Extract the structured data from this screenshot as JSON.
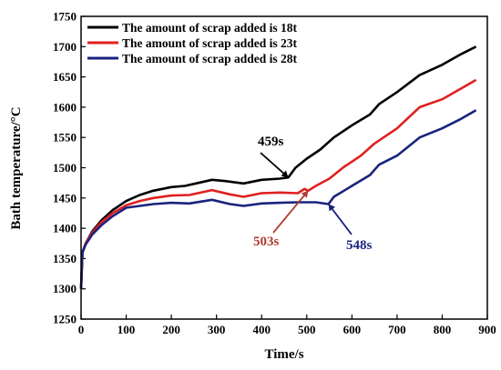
{
  "chart_data": {
    "type": "line",
    "title": "",
    "xlabel": "Time/s",
    "ylabel": "Bath temperature/°C",
    "xlim": [
      0,
      900
    ],
    "ylim": [
      1250,
      1750
    ],
    "xticks": [
      0,
      100,
      200,
      300,
      400,
      500,
      600,
      700,
      800,
      900
    ],
    "yticks": [
      1250,
      1300,
      1350,
      1400,
      1450,
      1500,
      1550,
      1600,
      1650,
      1700,
      1750
    ],
    "grid": false,
    "legend_position": "top-left",
    "series": [
      {
        "name": "The amount of scrap added is 18t",
        "color": "#000000",
        "points": [
          [
            0,
            1300
          ],
          [
            3,
            1360
          ],
          [
            10,
            1375
          ],
          [
            25,
            1395
          ],
          [
            45,
            1413
          ],
          [
            70,
            1430
          ],
          [
            100,
            1445
          ],
          [
            130,
            1455
          ],
          [
            160,
            1462
          ],
          [
            200,
            1468
          ],
          [
            230,
            1470
          ],
          [
            260,
            1475
          ],
          [
            290,
            1480
          ],
          [
            320,
            1478
          ],
          [
            360,
            1474
          ],
          [
            400,
            1480
          ],
          [
            440,
            1482
          ],
          [
            459,
            1484
          ],
          [
            475,
            1500
          ],
          [
            500,
            1515
          ],
          [
            530,
            1530
          ],
          [
            560,
            1550
          ],
          [
            600,
            1570
          ],
          [
            640,
            1588
          ],
          [
            660,
            1605
          ],
          [
            700,
            1625
          ],
          [
            750,
            1653
          ],
          [
            800,
            1670
          ],
          [
            840,
            1687
          ],
          [
            875,
            1700
          ]
        ]
      },
      {
        "name": "The amount of scrap added is 23t",
        "color": "#e02020",
        "points": [
          [
            0,
            1300
          ],
          [
            3,
            1360
          ],
          [
            10,
            1375
          ],
          [
            25,
            1393
          ],
          [
            45,
            1410
          ],
          [
            70,
            1425
          ],
          [
            100,
            1438
          ],
          [
            130,
            1445
          ],
          [
            160,
            1450
          ],
          [
            200,
            1454
          ],
          [
            240,
            1455
          ],
          [
            290,
            1463
          ],
          [
            330,
            1456
          ],
          [
            360,
            1452
          ],
          [
            400,
            1458
          ],
          [
            440,
            1459
          ],
          [
            480,
            1458
          ],
          [
            495,
            1465
          ],
          [
            503,
            1462
          ],
          [
            520,
            1470
          ],
          [
            550,
            1482
          ],
          [
            580,
            1500
          ],
          [
            620,
            1520
          ],
          [
            650,
            1540
          ],
          [
            700,
            1565
          ],
          [
            750,
            1600
          ],
          [
            800,
            1613
          ],
          [
            840,
            1630
          ],
          [
            875,
            1645
          ]
        ]
      },
      {
        "name": "The amount of scrap added is 28t",
        "color": "#1a237e",
        "points": [
          [
            0,
            1300
          ],
          [
            3,
            1360
          ],
          [
            10,
            1373
          ],
          [
            25,
            1390
          ],
          [
            45,
            1405
          ],
          [
            70,
            1420
          ],
          [
            100,
            1434
          ],
          [
            130,
            1437
          ],
          [
            160,
            1440
          ],
          [
            200,
            1442
          ],
          [
            240,
            1441
          ],
          [
            290,
            1447
          ],
          [
            330,
            1440
          ],
          [
            360,
            1437
          ],
          [
            400,
            1441
          ],
          [
            440,
            1442
          ],
          [
            480,
            1443
          ],
          [
            520,
            1443
          ],
          [
            548,
            1440
          ],
          [
            560,
            1452
          ],
          [
            600,
            1470
          ],
          [
            640,
            1488
          ],
          [
            660,
            1505
          ],
          [
            700,
            1520
          ],
          [
            750,
            1550
          ],
          [
            800,
            1565
          ],
          [
            840,
            1580
          ],
          [
            875,
            1595
          ]
        ]
      }
    ],
    "annotations": [
      {
        "label": "459s",
        "x": 459,
        "y": 1484,
        "color": "#000000"
      },
      {
        "label": "503s",
        "x": 503,
        "y": 1462,
        "color": "#b03a2e"
      },
      {
        "label": "548s",
        "x": 548,
        "y": 1440,
        "color": "#1a237e"
      }
    ]
  }
}
